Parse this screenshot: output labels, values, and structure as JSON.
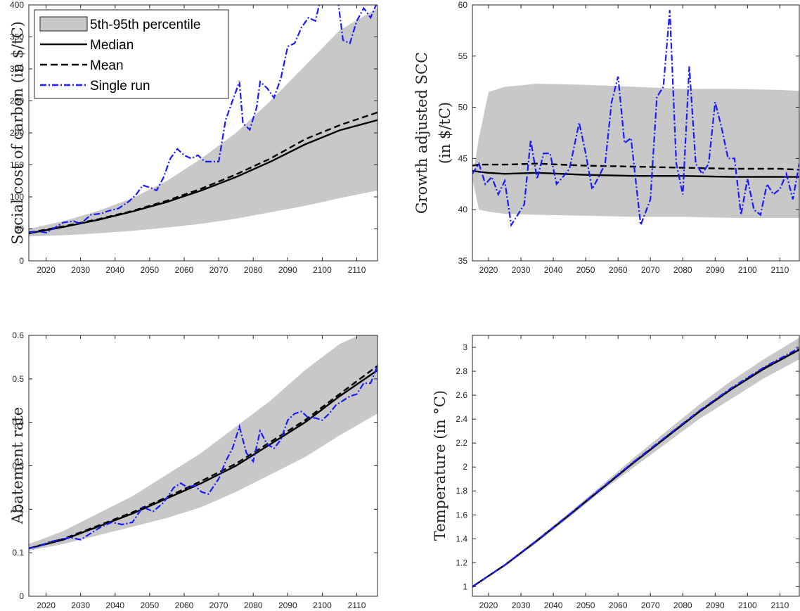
{
  "chart_data": [
    {
      "type": "line",
      "ylabel": "Social cost of carbon (in $/tC)",
      "xlim": [
        2015,
        2116
      ],
      "ylim": [
        0,
        400
      ],
      "xticks": [
        2020,
        2030,
        2040,
        2050,
        2060,
        2070,
        2080,
        2090,
        2100,
        2110
      ],
      "yticks": [
        0,
        50,
        100,
        150,
        200,
        250,
        300,
        350,
        400
      ],
      "x": [
        2015,
        2025,
        2035,
        2045,
        2055,
        2065,
        2075,
        2085,
        2095,
        2105,
        2116
      ],
      "band_upper": [
        50,
        62,
        78,
        98,
        125,
        160,
        200,
        250,
        305,
        360,
        395
      ],
      "band_lower": [
        38,
        40,
        43,
        47,
        52,
        58,
        66,
        76,
        86,
        98,
        110
      ],
      "median": [
        43,
        53,
        64,
        77,
        92,
        110,
        131,
        155,
        182,
        204,
        220
      ],
      "mean": [
        44,
        54,
        65,
        78,
        94,
        113,
        135,
        160,
        190,
        212,
        232
      ],
      "single_x": [
        2015,
        2018,
        2020,
        2022,
        2025,
        2028,
        2030,
        2033,
        2036,
        2038,
        2041,
        2044,
        2046,
        2048,
        2050,
        2052,
        2054,
        2056,
        2058,
        2060,
        2062,
        2064,
        2066,
        2068,
        2070,
        2072,
        2074,
        2076,
        2077,
        2079,
        2081,
        2082,
        2084,
        2086,
        2088,
        2090,
        2092,
        2094,
        2096,
        2098,
        2100,
        2102,
        2104,
        2106,
        2108,
        2110,
        2112,
        2114,
        2116
      ],
      "single": [
        45,
        46,
        44,
        50,
        60,
        62,
        58,
        72,
        74,
        78,
        82,
        93,
        103,
        118,
        115,
        110,
        130,
        160,
        175,
        165,
        160,
        165,
        155,
        155,
        155,
        220,
        250,
        280,
        215,
        205,
        240,
        280,
        270,
        255,
        285,
        335,
        340,
        365,
        380,
        375,
        420,
        450,
        430,
        345,
        340,
        375,
        395,
        380,
        405
      ],
      "legend": {
        "position": "top-left",
        "entries": [
          "5th-95th percentile",
          "Median",
          "Mean",
          "Single run"
        ]
      }
    },
    {
      "type": "line",
      "ylabel": "Growth adjusted SCC (in $/tC)",
      "xlim": [
        2015,
        2116
      ],
      "ylim": [
        35,
        60
      ],
      "xticks": [
        2020,
        2030,
        2040,
        2050,
        2060,
        2070,
        2080,
        2090,
        2100,
        2110
      ],
      "yticks": [
        35,
        40,
        45,
        50,
        55,
        60
      ],
      "x": [
        2015,
        2017,
        2020,
        2025,
        2035,
        2050,
        2065,
        2080,
        2095,
        2110,
        2116
      ],
      "band_upper": [
        43,
        47,
        51.5,
        52,
        52.3,
        52.2,
        52,
        51.8,
        51.8,
        51.7,
        51.6
      ],
      "band_lower": [
        43,
        40,
        39.8,
        39.6,
        39.5,
        39.4,
        39.3,
        39.3,
        39.2,
        39.2,
        39.2
      ],
      "median": [
        43.8,
        43.7,
        43.6,
        43.5,
        43.6,
        43.4,
        43.3,
        43.3,
        43.2,
        43.2,
        43.2
      ],
      "mean": [
        44.3,
        44.4,
        44.4,
        44.4,
        44.5,
        44.3,
        44.2,
        44.1,
        44.0,
        44.0,
        43.9
      ],
      "single_x": [
        2015,
        2017,
        2019,
        2021,
        2023,
        2025,
        2027,
        2029,
        2031,
        2033,
        2035,
        2037,
        2039,
        2041,
        2043,
        2045,
        2048,
        2050,
        2052,
        2054,
        2056,
        2058,
        2060,
        2062,
        2064,
        2067,
        2070,
        2072,
        2074,
        2076,
        2078,
        2080,
        2082,
        2084,
        2086,
        2088,
        2090,
        2092,
        2094,
        2096,
        2098,
        2100,
        2102,
        2104,
        2106,
        2108,
        2110,
        2112,
        2114,
        2116
      ],
      "single": [
        43.5,
        44.5,
        42.5,
        43.2,
        41.5,
        42.8,
        38.5,
        39.5,
        40.5,
        46.8,
        43,
        45.5,
        45.5,
        42.5,
        43.2,
        44,
        48.5,
        45.5,
        42,
        43.2,
        44.5,
        50.5,
        53,
        46.5,
        47,
        38.5,
        41,
        51,
        52,
        59.5,
        44.5,
        41.5,
        54,
        44.5,
        43.5,
        44.5,
        50.5,
        48,
        45,
        45,
        39.5,
        43,
        40,
        39.5,
        42.5,
        41.5,
        42,
        43.5,
        41,
        44.5
      ],
      "legend": null
    },
    {
      "type": "line",
      "ylabel": "Abatement rate",
      "xlim": [
        2015,
        2116
      ],
      "ylim": [
        0,
        0.6
      ],
      "xticks": [
        2020,
        2030,
        2040,
        2050,
        2060,
        2070,
        2080,
        2090,
        2100,
        2110
      ],
      "yticks": [
        0,
        0.1,
        0.2,
        0.3,
        0.4,
        0.5,
        0.6
      ],
      "x": [
        2015,
        2025,
        2035,
        2045,
        2055,
        2065,
        2075,
        2085,
        2095,
        2105,
        2116
      ],
      "band_upper": [
        0.12,
        0.15,
        0.19,
        0.23,
        0.28,
        0.33,
        0.39,
        0.45,
        0.52,
        0.58,
        0.62
      ],
      "band_lower": [
        0.105,
        0.12,
        0.14,
        0.16,
        0.18,
        0.205,
        0.24,
        0.28,
        0.32,
        0.37,
        0.42
      ],
      "median": [
        0.11,
        0.13,
        0.16,
        0.19,
        0.225,
        0.26,
        0.3,
        0.35,
        0.4,
        0.46,
        0.52
      ],
      "mean": [
        0.11,
        0.132,
        0.162,
        0.193,
        0.228,
        0.265,
        0.305,
        0.355,
        0.405,
        0.465,
        0.53
      ],
      "single_x": [
        2015,
        2018,
        2021,
        2024,
        2027,
        2030,
        2033,
        2036,
        2039,
        2042,
        2045,
        2048,
        2051,
        2054,
        2057,
        2059,
        2061,
        2063,
        2065,
        2067,
        2070,
        2072,
        2074,
        2076,
        2078,
        2080,
        2082,
        2084,
        2086,
        2088,
        2090,
        2092,
        2094,
        2096,
        2098,
        2100,
        2102,
        2104,
        2106,
        2108,
        2110,
        2112,
        2114,
        2116
      ],
      "single": [
        0.11,
        0.115,
        0.125,
        0.13,
        0.135,
        0.13,
        0.145,
        0.16,
        0.17,
        0.165,
        0.17,
        0.205,
        0.195,
        0.215,
        0.25,
        0.26,
        0.25,
        0.255,
        0.24,
        0.235,
        0.27,
        0.31,
        0.34,
        0.39,
        0.33,
        0.31,
        0.38,
        0.35,
        0.34,
        0.36,
        0.405,
        0.42,
        0.425,
        0.41,
        0.41,
        0.405,
        0.42,
        0.44,
        0.45,
        0.46,
        0.465,
        0.49,
        0.49,
        0.53
      ],
      "legend": null
    },
    {
      "type": "line",
      "ylabel": "Temperature (in °C)",
      "xlim": [
        2015,
        2116
      ],
      "ylim": [
        0.92,
        3.1
      ],
      "xticks": [
        2020,
        2030,
        2040,
        2050,
        2060,
        2070,
        2080,
        2090,
        2100,
        2110
      ],
      "yticks": [
        1,
        1.2,
        1.4,
        1.6,
        1.8,
        2,
        2.2,
        2.4,
        2.6,
        2.8,
        3
      ],
      "x": [
        2015,
        2025,
        2035,
        2045,
        2055,
        2065,
        2075,
        2085,
        2095,
        2105,
        2116
      ],
      "band_upper": [
        1.0,
        1.19,
        1.4,
        1.62,
        1.85,
        2.08,
        2.3,
        2.52,
        2.72,
        2.9,
        3.08
      ],
      "band_lower": [
        1.0,
        1.17,
        1.37,
        1.58,
        1.8,
        2.0,
        2.2,
        2.4,
        2.57,
        2.74,
        2.9
      ],
      "median": [
        1.0,
        1.18,
        1.385,
        1.6,
        1.82,
        2.04,
        2.25,
        2.46,
        2.65,
        2.82,
        2.98
      ],
      "mean": [
        1.0,
        1.18,
        1.387,
        1.602,
        1.823,
        2.043,
        2.253,
        2.463,
        2.653,
        2.825,
        2.985
      ],
      "single_x": [
        2015,
        2025,
        2035,
        2045,
        2055,
        2065,
        2075,
        2085,
        2095,
        2105,
        2116
      ],
      "single": [
        1.0,
        1.181,
        1.388,
        1.604,
        1.826,
        2.047,
        2.258,
        2.468,
        2.66,
        2.832,
        2.995
      ],
      "legend": null
    }
  ],
  "colors": {
    "band": "#c8c8c8",
    "median": "#000000",
    "mean": "#000000",
    "single": "#1a1aff"
  }
}
